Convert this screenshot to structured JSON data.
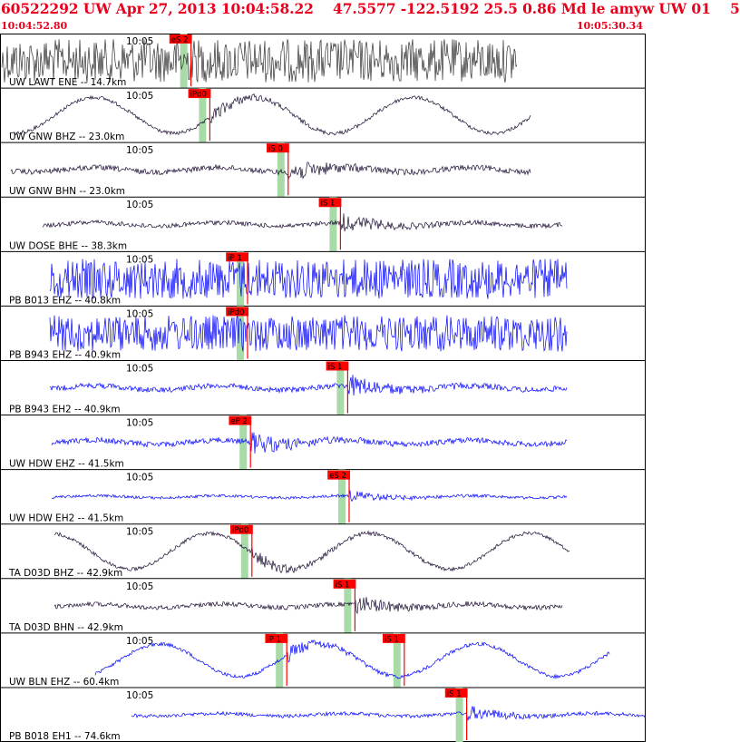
{
  "header": {
    "title": "60522292 UW Apr 27, 2013 10:04:58.22    47.5577 -122.5192 25.5 0.86 Md le amyw UW 01    5",
    "start_time": "10:04:52.80",
    "end_time": "10:05:30.34"
  },
  "colors": {
    "header_text": "#e8001c",
    "pick_box": "#ff0000",
    "window": "#a8dba8",
    "dark_trace": "#1a0a30",
    "blue_trace": "#0000ff",
    "gray_trace": "#303030"
  },
  "chart_data": {
    "type": "seismogram",
    "time_axis": {
      "start": "10:04:52.80",
      "end": "10:05:30.34",
      "tick_label": "10:05"
    },
    "traces": [
      {
        "label": "UW LAWT ENE -- 14.7km",
        "color": "gray",
        "picks": [
          {
            "label": "eS 2",
            "time": "10:05:03.1"
          }
        ]
      },
      {
        "label": "UW GNW BHZ -- 23.0km",
        "color": "dark",
        "picks": [
          {
            "label": "iPd0",
            "time": "10:05:04.4"
          }
        ]
      },
      {
        "label": "UW GNW BHN -- 23.0km",
        "color": "dark",
        "picks": [
          {
            "label": "iS 0",
            "time": "10:05:09.8"
          }
        ]
      },
      {
        "label": "UW DOSE BHE -- 38.3km",
        "color": "dark",
        "picks": [
          {
            "label": "iS 1",
            "time": "10:05:13.4"
          }
        ]
      },
      {
        "label": "PB B013 EHZ -- 40.8km",
        "color": "blue",
        "picks": [
          {
            "label": "iP 1",
            "time": "10:05:07.0"
          }
        ]
      },
      {
        "label": "PB B943 EHZ -- 40.9km",
        "color": "blue",
        "picks": [
          {
            "label": "iPd0",
            "time": "10:05:07.0"
          }
        ]
      },
      {
        "label": "PB B943 EH2 -- 40.9km",
        "color": "blue",
        "picks": [
          {
            "label": "iS 1",
            "time": "10:05:13.9"
          }
        ]
      },
      {
        "label": "UW HDW EHZ -- 41.5km",
        "color": "blue",
        "picks": [
          {
            "label": "eP 2",
            "time": "10:05:07.2"
          }
        ]
      },
      {
        "label": "UW HDW EH2 -- 41.5km",
        "color": "blue",
        "picks": [
          {
            "label": "eS 2",
            "time": "10:05:14.0"
          }
        ]
      },
      {
        "label": "TA D03D BHZ -- 42.9km",
        "color": "dark",
        "picks": [
          {
            "label": "iPd0",
            "time": "10:05:07.3"
          }
        ]
      },
      {
        "label": "TA D03D BHN -- 42.9km",
        "color": "dark",
        "picks": [
          {
            "label": "iS 1",
            "time": "10:05:14.4"
          }
        ]
      },
      {
        "label": "UW BLN EHZ -- 60.4km",
        "color": "blue",
        "picks": [
          {
            "label": "iP 1",
            "time": "10:05:09.7"
          },
          {
            "label": "iS 1",
            "time": "10:05:17.8"
          }
        ]
      },
      {
        "label": "PB B018 EH1 -- 74.6km",
        "color": "blue",
        "picks": [
          {
            "label": "iS 1",
            "time": "10:05:22.1"
          }
        ]
      }
    ]
  }
}
